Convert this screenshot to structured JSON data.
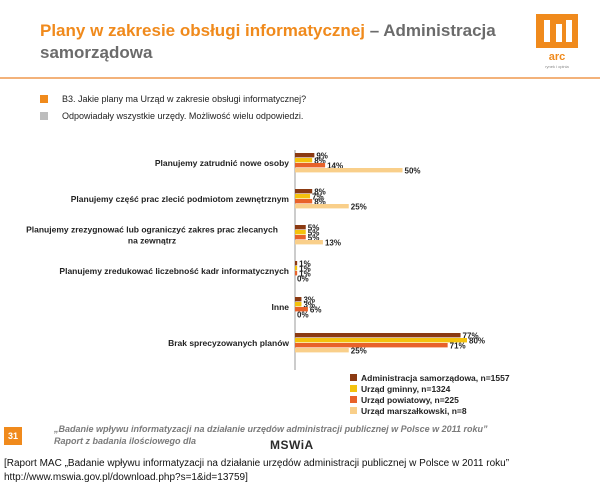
{
  "slide": {
    "title_part1": "Plany w zakresie obsługi informatycznej",
    "title_part2": " – Administracja samorządowa",
    "logo_text": "arc",
    "logo_subtext": "rynek i opinia",
    "bullets": [
      {
        "text": "B3. Jakie  plany ma Urząd w zakresie obsługi informatycznej?",
        "color": "#f08a1c"
      },
      {
        "text": "Odpowiadały wszystkie urzędy. Możliwość wielu odpowiedzi.",
        "color": "#bdbdbd"
      }
    ],
    "page_number": "31",
    "footnote_line1": "„Badanie wpływu informatyzacji na działanie urzędów administracji publicznej w Polsce w 2011 roku”",
    "footnote_line2": "Raport z badania ilościowego dla",
    "footnote_org": "MSWiA"
  },
  "caption": {
    "line1": "[Raport MAC „Badanie wpływu informatyzacji na działanie urzędów administracji publicznej w Polsce w 2011 roku”",
    "line2": "http://www.mswia.gov.pl/download.php?s=1&id=13759]"
  },
  "chart_data": {
    "type": "bar",
    "orientation": "horizontal",
    "xlim": [
      0,
      100
    ],
    "unit": "%",
    "categories": [
      [
        "Planujemy zatrudnić nowe osoby"
      ],
      [
        "Planujemy część prac zlecić podmiotom zewnętrznym"
      ],
      [
        "Planujemy zrezygnować lub ograniczyć zakres prac zlecanych",
        "na zewnątrz"
      ],
      [
        "Planujemy zredukować liczebność kadr informatycznych"
      ],
      [
        "Inne"
      ],
      [
        "Brak sprecyzowanych planów"
      ]
    ],
    "series": [
      {
        "name": "Administracja samorządowa, n=1557",
        "color": "#8b3a12",
        "values": [
          9,
          8,
          5,
          1,
          3,
          77
        ]
      },
      {
        "name": "Urząd gminny, n=1324",
        "color": "#f4c20d",
        "values": [
          8,
          7,
          5,
          1,
          3,
          80
        ]
      },
      {
        "name": "Urząd powiatowy, n=225",
        "color": "#e8622a",
        "values": [
          14,
          8,
          5,
          1,
          6,
          71
        ]
      },
      {
        "name": "Urząd marszałkowski, n=8",
        "color": "#f9cf8a",
        "values": [
          50,
          25,
          13,
          0,
          0,
          25
        ]
      }
    ],
    "legend_position": "bottom-right",
    "grid": false
  }
}
